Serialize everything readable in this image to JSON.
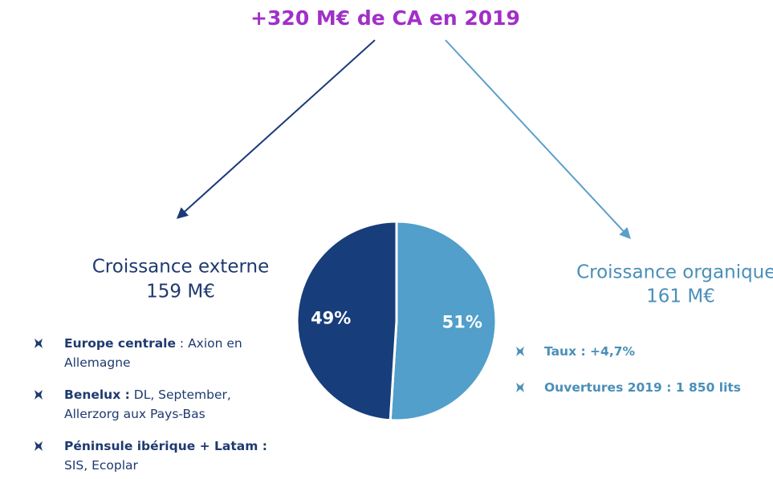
{
  "chart_data": {
    "type": "pie",
    "title": "+320 M€ de CA en 2019",
    "categories": [
      "Croissance organique*",
      "Croissance externe"
    ],
    "values": [
      51,
      49
    ],
    "value_labels": [
      "51%",
      "49%"
    ],
    "colors": [
      "#519fca",
      "#173d7a"
    ],
    "amounts": [
      "161 M€",
      "159 M€"
    ]
  },
  "panels": [
    {
      "items": [
        [
          [
            {
              "text": "Taux : +4,7%",
              "bold": true
            }
          ]
        ],
        [
          [
            {
              "text": "Ouvertures 2019 : 1 850 lits",
              "bold": true
            }
          ]
        ]
      ]
    },
    {
      "items": [
        [
          [
            {
              "text": "Europe centrale",
              "bold": true
            },
            {
              "text": " : Axion en",
              "bold": false
            }
          ],
          [
            {
              "text": "Allemagne",
              "bold": false
            }
          ]
        ],
        [
          [
            {
              "text": "Benelux :",
              "bold": true
            },
            {
              "text": " DL, September,",
              "bold": false
            }
          ],
          [
            {
              "text": "Allerzorg aux Pays-Bas",
              "bold": false
            }
          ]
        ],
        [
          [
            {
              "text": "Péninsule ibérique + Latam :",
              "bold": true
            }
          ],
          [
            {
              "text": "SIS, Ecoplar",
              "bold": false
            }
          ]
        ]
      ]
    }
  ]
}
